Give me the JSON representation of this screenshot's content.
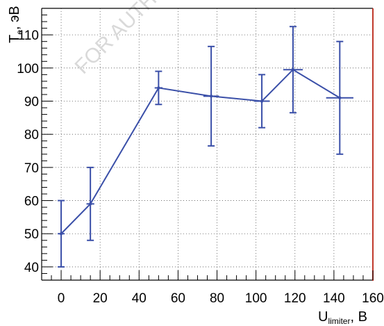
{
  "chart_data": {
    "type": "scatter",
    "title": "",
    "xlabel": {
      "main": "U",
      "sub": "limiter",
      "unit": ", B"
    },
    "ylabel": {
      "main": "T",
      "sub": "e",
      "unit": ", эВ"
    },
    "xlim": [
      -10,
      160
    ],
    "ylim": [
      36,
      118
    ],
    "xticks": [
      0,
      20,
      40,
      60,
      80,
      100,
      120,
      140,
      160
    ],
    "yticks": [
      40,
      50,
      60,
      70,
      80,
      90,
      100,
      110
    ],
    "grid": true,
    "legend": "none",
    "series": [
      {
        "color": "#3a4fa8",
        "connected": true,
        "x": [
          0,
          15,
          50,
          77,
          103,
          119,
          143
        ],
        "y": [
          50,
          59,
          94,
          91.5,
          90,
          99.5,
          91
        ],
        "y_err_low": [
          10,
          11,
          5,
          15,
          8,
          13,
          17
        ],
        "y_err_high": [
          10,
          11,
          5,
          15,
          8,
          13,
          17
        ],
        "x_err": [
          0,
          2,
          2,
          4,
          4,
          5,
          7
        ]
      }
    ]
  },
  "watermark": "FOR AUTHOR",
  "colors": {
    "series": "#3a4fa8",
    "right_edge": "#c0392b",
    "grid": "#555555"
  }
}
